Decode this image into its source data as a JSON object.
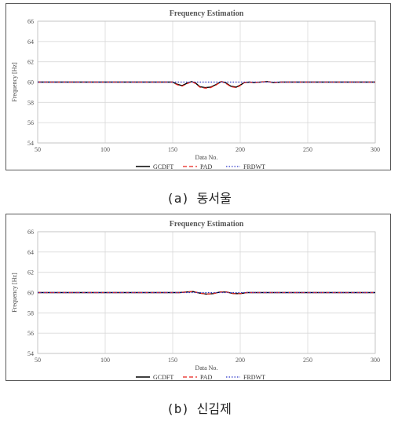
{
  "chart_data": [
    {
      "type": "line",
      "title": "Frequency Estimation",
      "xlabel": "Data No.",
      "ylabel": "Frequency [Hz]",
      "xlim": [
        50,
        300
      ],
      "ylim": [
        54,
        66
      ],
      "xticks": [
        "50",
        "100",
        "150",
        "200",
        "250",
        "300"
      ],
      "yticks": [
        "54",
        "56",
        "58",
        "60",
        "62",
        "64",
        "66"
      ],
      "grid": true,
      "legend": "bottom",
      "series": [
        {
          "name": "GCDFT",
          "color": "#000000",
          "style": "solid",
          "x": [
            50,
            150,
            153,
            157,
            160,
            164,
            167,
            170,
            174,
            178,
            182,
            186,
            189,
            193,
            197,
            200,
            203,
            207,
            210,
            220,
            225,
            230,
            300
          ],
          "y": [
            60,
            60,
            59.8,
            59.65,
            59.85,
            60.05,
            59.9,
            59.55,
            59.45,
            59.5,
            59.75,
            60.05,
            59.95,
            59.6,
            59.5,
            59.7,
            59.95,
            60.0,
            59.95,
            60.05,
            59.95,
            60,
            60
          ]
        },
        {
          "name": "PAD",
          "color": "#e8221b",
          "style": "dash",
          "x": [
            50,
            150,
            153,
            157,
            160,
            164,
            167,
            170,
            174,
            178,
            182,
            186,
            189,
            193,
            197,
            200,
            203,
            207,
            210,
            220,
            225,
            230,
            300
          ],
          "y": [
            60,
            60,
            59.75,
            59.6,
            59.8,
            60.05,
            59.85,
            59.5,
            59.4,
            59.45,
            59.7,
            60.05,
            59.9,
            59.55,
            59.45,
            59.65,
            59.95,
            60.0,
            59.95,
            60.05,
            59.95,
            60,
            60
          ]
        },
        {
          "name": "FRDWT",
          "color": "#2b35c8",
          "style": "dot",
          "x": [
            50,
            300
          ],
          "y": [
            60,
            60
          ]
        }
      ]
    },
    {
      "type": "line",
      "title": "Frequency Estimation",
      "xlabel": "Data No.",
      "ylabel": "Frequency [Hz]",
      "xlim": [
        50,
        300
      ],
      "ylim": [
        54,
        66
      ],
      "xticks": [
        "50",
        "100",
        "150",
        "200",
        "250",
        "300"
      ],
      "yticks": [
        "54",
        "56",
        "58",
        "60",
        "62",
        "64",
        "66"
      ],
      "grid": true,
      "legend": "bottom",
      "series": [
        {
          "name": "GCDFT",
          "color": "#000000",
          "style": "solid",
          "x": [
            50,
            155,
            160,
            165,
            170,
            175,
            180,
            185,
            190,
            195,
            200,
            205,
            210,
            300
          ],
          "y": [
            60,
            60,
            60.05,
            60.1,
            59.95,
            59.85,
            59.9,
            60.05,
            60.05,
            59.9,
            59.9,
            60.0,
            60,
            60
          ]
        },
        {
          "name": "PAD",
          "color": "#e8221b",
          "style": "dash",
          "x": [
            50,
            155,
            160,
            165,
            170,
            175,
            180,
            185,
            190,
            195,
            200,
            205,
            210,
            300
          ],
          "y": [
            60,
            60,
            60.05,
            60.1,
            59.95,
            59.85,
            59.9,
            60.05,
            60.05,
            59.9,
            59.9,
            60.0,
            60,
            60
          ]
        },
        {
          "name": "FRDWT",
          "color": "#2b35c8",
          "style": "dot",
          "x": [
            50,
            300
          ],
          "y": [
            60,
            60
          ]
        }
      ]
    }
  ],
  "captions": [
    "(a) 동서울",
    "(b) 신김제"
  ]
}
